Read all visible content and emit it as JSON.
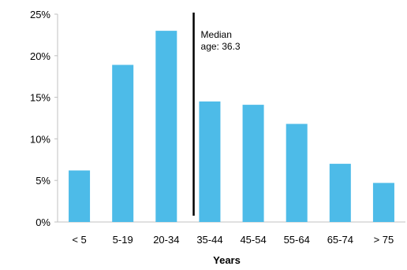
{
  "chart_data": {
    "type": "bar",
    "categories": [
      "< 5",
      "5-19",
      "20-34",
      "35-44",
      "45-54",
      "55-64",
      "65-74",
      "> 75"
    ],
    "series": [
      {
        "values": [
          6.2,
          18.9,
          23.0,
          14.5,
          14.1,
          11.8,
          7.0,
          4.7
        ]
      }
    ],
    "y_ticks": [
      "0%",
      "5%",
      "10%",
      "15%",
      "20%",
      "25%"
    ],
    "ylim": [
      0,
      25
    ],
    "xlabel": "Years",
    "ylabel": "",
    "grid": false,
    "bar_color": "#4dbbe8",
    "annotation": {
      "line1": "Median",
      "line2": "age: 36.3",
      "value": 36.3
    }
  }
}
